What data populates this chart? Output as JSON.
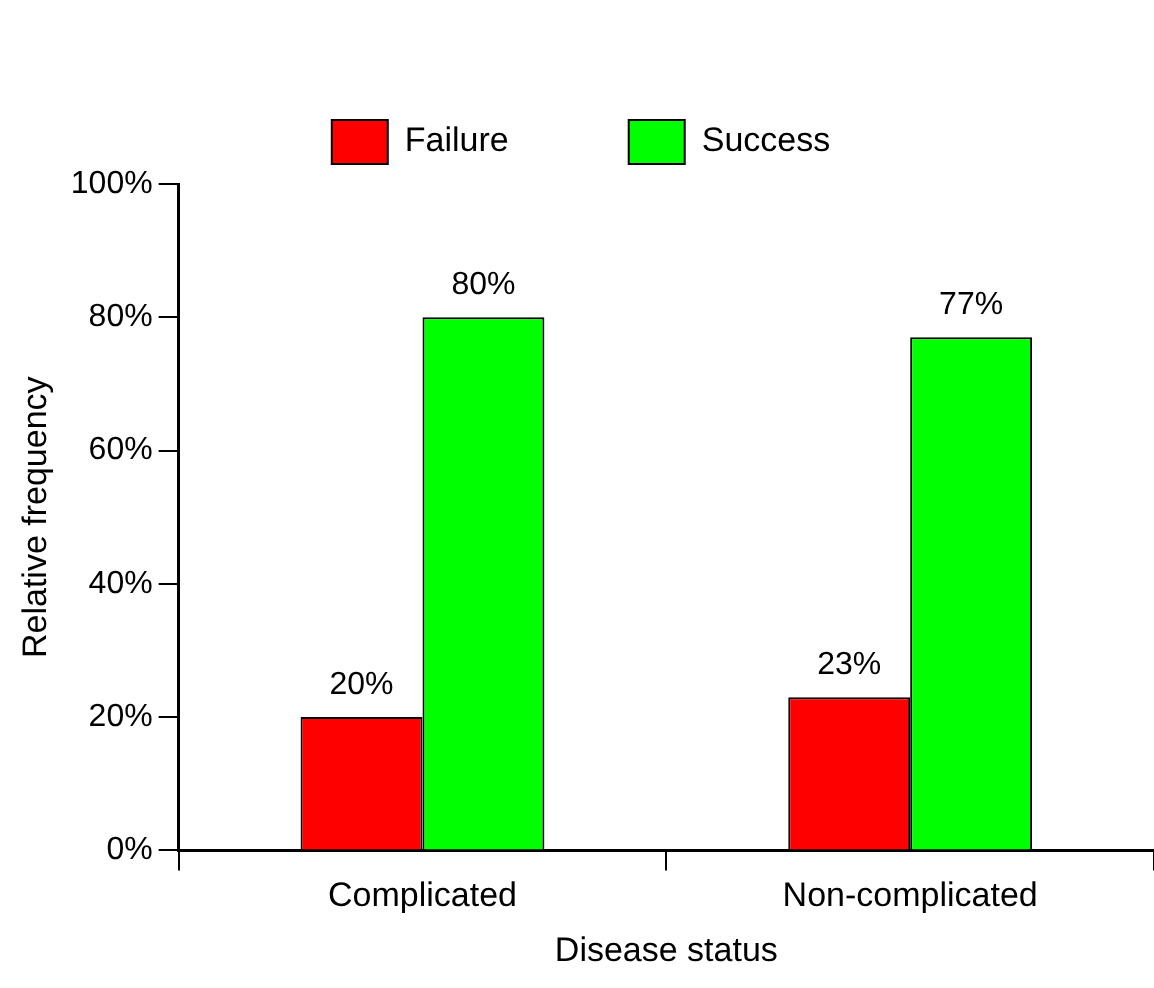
{
  "chart_data": {
    "type": "bar",
    "xlabel": "Disease status",
    "ylabel": "Relative frequency",
    "categories": [
      "Complicated",
      "Non-complicated"
    ],
    "series": [
      {
        "name": "Failure",
        "color": "#ff0000",
        "values": [
          20,
          23
        ],
        "value_labels": [
          "20%",
          "23%"
        ]
      },
      {
        "name": "Success",
        "color": "#00ff00",
        "values": [
          80,
          77
        ],
        "value_labels": [
          "80%",
          "77%"
        ]
      }
    ],
    "ylim": [
      0,
      100
    ],
    "yticks": [
      {
        "value": 0,
        "label": "0%"
      },
      {
        "value": 20,
        "label": "20%"
      },
      {
        "value": 40,
        "label": "40%"
      },
      {
        "value": 60,
        "label": "60%"
      },
      {
        "value": 80,
        "label": "80%"
      },
      {
        "value": 100,
        "label": "100%"
      }
    ],
    "grid": false,
    "legend": "top"
  }
}
